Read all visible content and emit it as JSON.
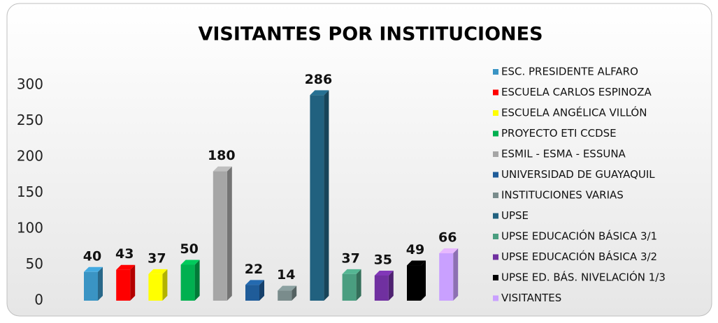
{
  "chart_data": {
    "type": "bar3d",
    "title": "VISITANTES POR INSTITUCIONES",
    "categories": [
      "ESC. PRESIDENTE ALFARO",
      "ESCUELA CARLOS ESPINOZA",
      "ESCUELA ANGÉLICA VILLÓN",
      "PROYECTO ETI CCDSE",
      "ESMIL - ESMA - ESSUNA",
      "UNIVERSIDAD DE GUAYAQUIL",
      "INSTITUCIONES VARIAS",
      "UPSE",
      "UPSE EDUCACIÓN BÁSICA 3/1",
      "UPSE EDUCACIÓN BÁSICA 3/2",
      "UPSE ED. BÁS. NIVELACIÓN 1/3",
      "VISITANTES"
    ],
    "values": [
      40,
      43,
      37,
      50,
      180,
      22,
      14,
      286,
      37,
      35,
      49,
      66
    ],
    "colors": [
      "#3a94c4",
      "#ff0000",
      "#ffff00",
      "#00b050",
      "#a6a6a6",
      "#1f5c99",
      "#7a8c8c",
      "#21617f",
      "#4a9e80",
      "#7030a0",
      "#000000",
      "#c9a0ff"
    ],
    "ylim": [
      0,
      300
    ],
    "yticks": [
      0,
      50,
      100,
      150,
      200,
      250,
      300
    ],
    "grid": false,
    "legend": "right"
  }
}
